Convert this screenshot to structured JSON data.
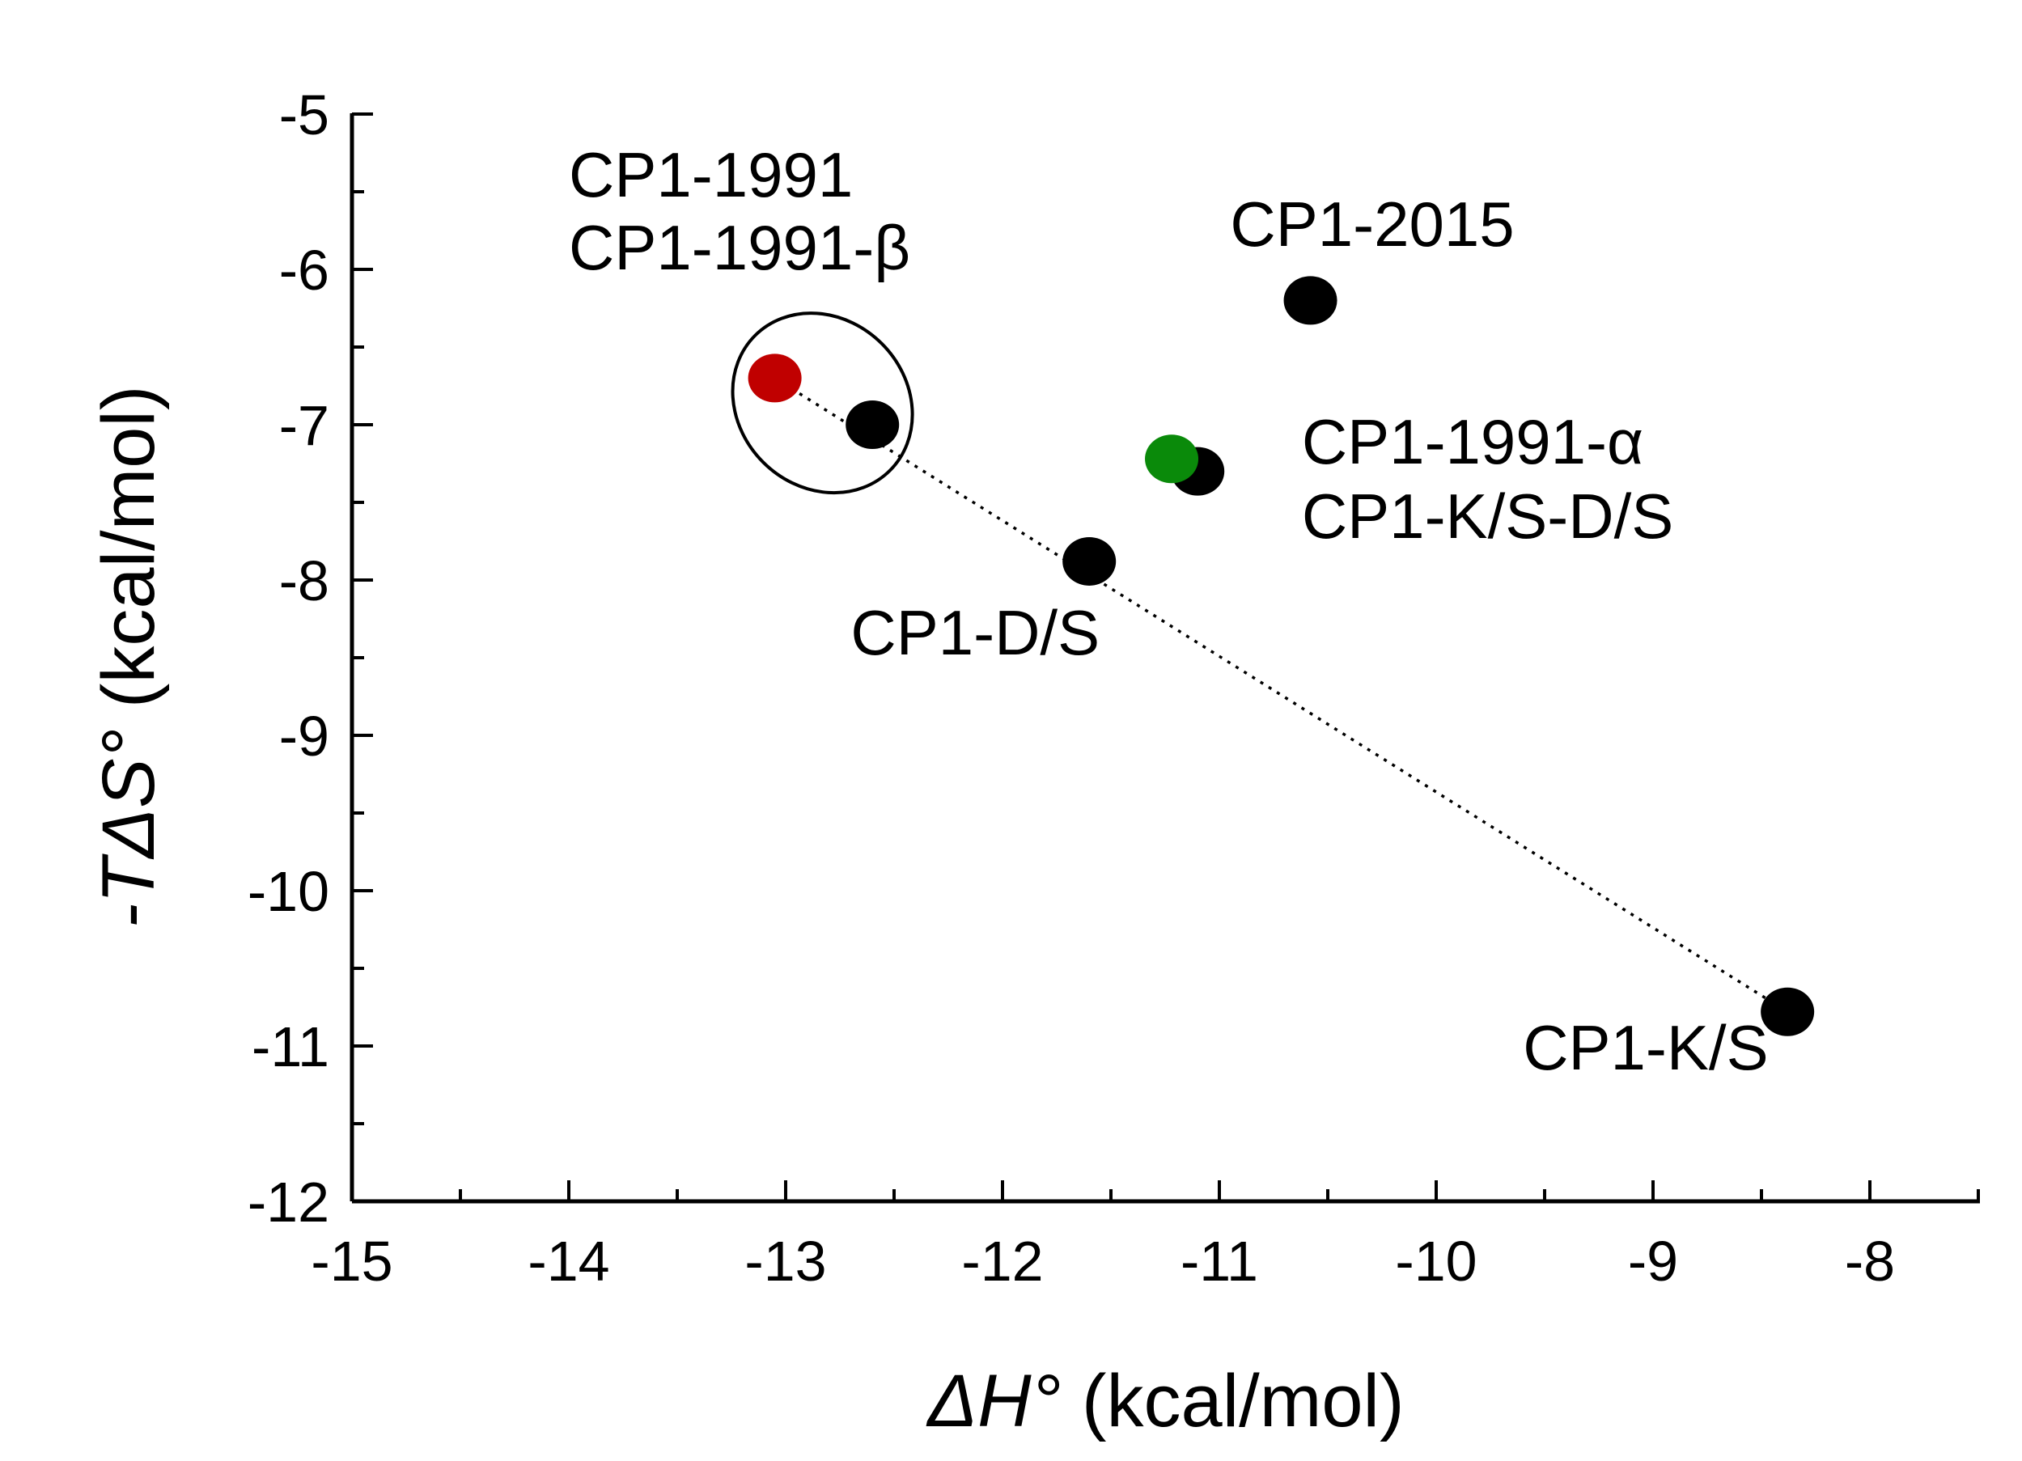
{
  "chart_data": {
    "type": "scatter",
    "title": "",
    "xlabel_symbol": "ΔH°",
    "xlabel_unit": "(kcal/mol)",
    "ylabel_symbol": "-TΔS°",
    "ylabel_unit": "(kcal/mol)",
    "xlim": [
      -15,
      -7.5
    ],
    "ylim": [
      -12,
      -5
    ],
    "xticks": [
      -15,
      -14,
      -13,
      -12,
      -11,
      -10,
      -9,
      -8
    ],
    "yticks": [
      -12,
      -11,
      -10,
      -9,
      -8,
      -7,
      -6,
      -5
    ],
    "grid": false,
    "points": [
      {
        "name": "CP1-1991",
        "x": -13.05,
        "y": -6.7,
        "color": "#c00000"
      },
      {
        "name": "CP1-1991-β",
        "x": -12.6,
        "y": -7.0,
        "color": "#000000"
      },
      {
        "name": "CP1-D/S",
        "x": -11.6,
        "y": -7.88,
        "color": "#000000"
      },
      {
        "name": "CP1-2015",
        "x": -10.58,
        "y": -6.2,
        "color": "#000000"
      },
      {
        "name": "CP1-K/S-D/S",
        "x": -11.1,
        "y": -7.3,
        "color": "#000000"
      },
      {
        "name": "CP1-1991-α",
        "x": -11.22,
        "y": -7.22,
        "color": "#0a8a0a"
      },
      {
        "name": "CP1-K/S",
        "x": -8.38,
        "y": -10.78,
        "color": "#000000"
      }
    ],
    "labels": [
      {
        "text": "CP1-1991",
        "x": -14.0,
        "y": -5.53,
        "color": "#c00000"
      },
      {
        "text": "CP1-1991-β",
        "x": -14.0,
        "y": -6.0,
        "color": "#000000"
      },
      {
        "text": "CP1-2015",
        "x": -10.95,
        "y": -5.85,
        "color": "#000000"
      },
      {
        "text": "CP1-1991-α",
        "x": -10.62,
        "y": -7.25,
        "color": "#0a8a0a"
      },
      {
        "text": "CP1-K/S-D/S",
        "x": -10.62,
        "y": -7.73,
        "color": "#000000"
      },
      {
        "text": "CP1-D/S",
        "x": -12.7,
        "y": -8.48,
        "color": "#000000"
      },
      {
        "text": "CP1-K/S",
        "x": -9.6,
        "y": -11.15,
        "color": "#000000"
      }
    ],
    "fit_line": {
      "from": [
        -13.05,
        -6.7
      ],
      "to": [
        -8.38,
        -10.78
      ],
      "style": "dotted"
    },
    "group_highlight": {
      "members": [
        "CP1-1991",
        "CP1-1991-β"
      ],
      "shape": "ellipse",
      "center": [
        -12.83,
        -6.86
      ],
      "rx": 0.44,
      "ry": 0.54,
      "angle_deg": 45
    }
  }
}
